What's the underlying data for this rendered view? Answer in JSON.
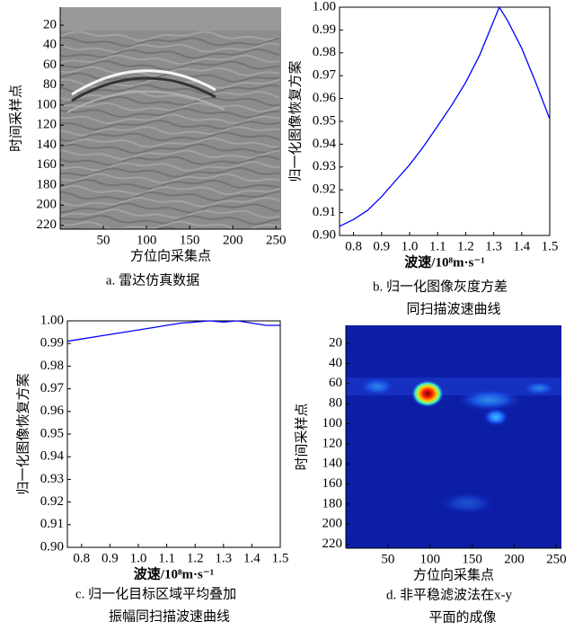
{
  "chart_data": [
    {
      "type": "image",
      "xlabel": "方位向采集点",
      "ylabel": "时间采样点",
      "caption": [
        "a. 雷达仿真数据"
      ],
      "xlim": [
        0,
        256
      ],
      "ylim": [
        2,
        224
      ],
      "yreverse": true,
      "xticks": [
        50,
        100,
        150,
        200,
        250
      ],
      "yticks": [
        20,
        40,
        60,
        80,
        100,
        120,
        140,
        160,
        180,
        200,
        220
      ]
    },
    {
      "type": "line",
      "xlabel": "波速/10⁸m·s⁻¹",
      "ylabel": "归一化图像恢复方案",
      "caption": [
        "b. 归一化图像灰度方差",
        "同扫描波速曲线"
      ],
      "xlim": [
        0.75,
        1.5
      ],
      "ylim": [
        0.9,
        1.0
      ],
      "color": "#0000ff",
      "xticks": [
        0.8,
        0.9,
        {
          "value": 1.0,
          "label": "1.0"
        },
        1.1,
        1.2,
        1.3,
        1.4,
        1.5
      ],
      "yticks": [
        {
          "value": 0.9,
          "label": "0.90"
        },
        0.91,
        0.92,
        0.93,
        0.94,
        0.95,
        0.96,
        0.97,
        0.98,
        0.99,
        {
          "value": 1.0,
          "label": "1.00"
        }
      ],
      "x": [
        0.75,
        0.8,
        0.85,
        0.9,
        0.95,
        1.0,
        1.05,
        1.1,
        1.15,
        1.2,
        1.25,
        1.3,
        1.32,
        1.35,
        1.4,
        1.45,
        1.5
      ],
      "values": [
        0.904,
        0.907,
        0.911,
        0.917,
        0.924,
        0.931,
        0.939,
        0.948,
        0.957,
        0.967,
        0.979,
        0.994,
        1.0,
        0.994,
        0.982,
        0.967,
        0.951
      ]
    },
    {
      "type": "line",
      "xlabel": "波速/10⁸m·s⁻¹",
      "ylabel": "归一化图像恢复方案",
      "caption": [
        "c. 归一化目标区域平均叠加",
        "振幅同扫描波速曲线"
      ],
      "xlim": [
        0.75,
        1.5
      ],
      "ylim": [
        0.9,
        1.0
      ],
      "color": "#0000ff",
      "xticks": [
        0.8,
        0.9,
        {
          "value": 1.0,
          "label": "1.0"
        },
        1.1,
        1.2,
        1.3,
        1.4,
        1.5
      ],
      "yticks": [
        {
          "value": 0.9,
          "label": "0.90"
        },
        0.91,
        0.92,
        0.93,
        0.94,
        0.95,
        0.96,
        0.97,
        0.98,
        0.99,
        {
          "value": 1.0,
          "label": "1.00"
        }
      ],
      "x": [
        0.75,
        0.8,
        0.85,
        0.9,
        0.95,
        1.0,
        1.05,
        1.1,
        1.15,
        1.2,
        1.25,
        1.3,
        1.35,
        1.4,
        1.45,
        1.5
      ],
      "values": [
        0.991,
        0.992,
        0.993,
        0.994,
        0.995,
        0.996,
        0.997,
        0.998,
        0.999,
        0.9995,
        1.0,
        0.9995,
        1.0,
        0.999,
        0.998,
        0.998
      ]
    },
    {
      "type": "image",
      "xlabel": "方位向采集点",
      "ylabel": "时间采样点",
      "caption": [
        "d. 非平稳滤波法在x-y",
        "平面的成像"
      ],
      "xlim": [
        0,
        256
      ],
      "ylim": [
        2,
        224
      ],
      "yreverse": true,
      "xticks": [
        50,
        100,
        150,
        200,
        250
      ],
      "yticks": [
        20,
        40,
        60,
        80,
        100,
        120,
        140,
        160,
        180,
        200,
        220
      ]
    }
  ]
}
